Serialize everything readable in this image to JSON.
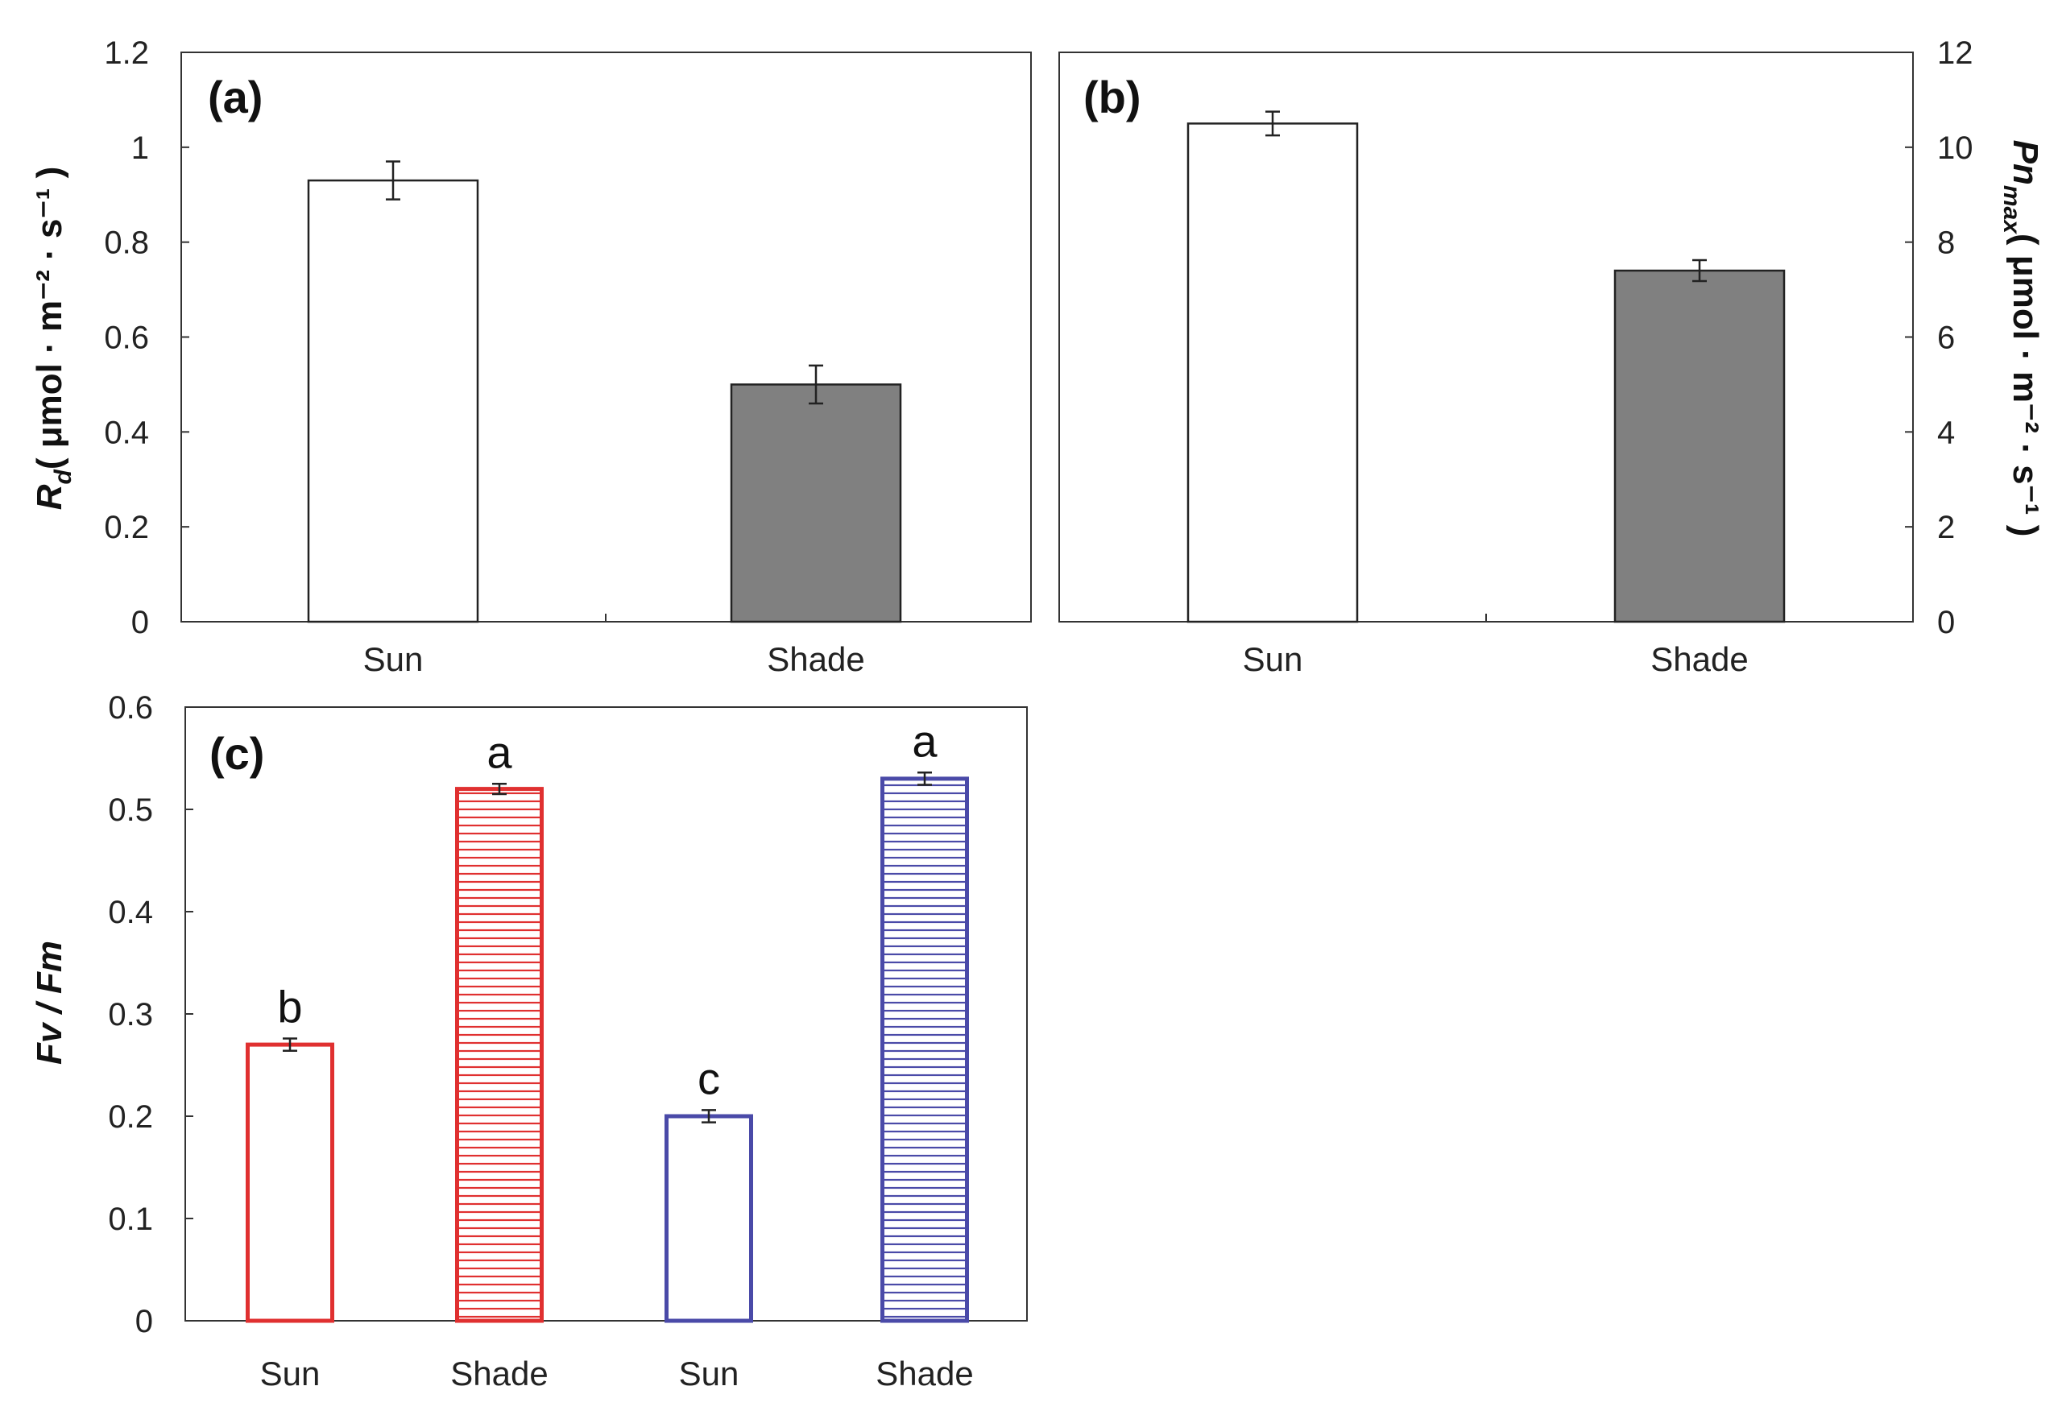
{
  "chart_data": [
    {
      "panel": "(a)",
      "type": "bar",
      "categories": [
        "Sun",
        "Shade"
      ],
      "values": [
        0.93,
        0.5
      ],
      "errors": [
        0.04,
        0.04
      ],
      "bar_fill": [
        "#ffffff",
        "#808080"
      ],
      "bar_stroke": [
        "#222222",
        "#222222"
      ],
      "ylim": [
        0,
        1.2
      ],
      "yticks": [
        "0",
        "0.2",
        "0.4",
        "0.6",
        "0.8",
        "1",
        "1.2"
      ],
      "ylabel_main": "R",
      "ylabel_sub": "d",
      "ylabel_units": "( μmol · m⁻² · s⁻¹ )"
    },
    {
      "panel": "(b)",
      "type": "bar",
      "categories": [
        "Sun",
        "Shade"
      ],
      "values": [
        10.5,
        7.4
      ],
      "errors": [
        0.25,
        0.22
      ],
      "bar_fill": [
        "#ffffff",
        "#808080"
      ],
      "bar_stroke": [
        "#222222",
        "#222222"
      ],
      "ylim": [
        0,
        12
      ],
      "yticks": [
        "0",
        "2",
        "4",
        "6",
        "8",
        "10",
        "12"
      ],
      "ylabel_main": "Pn",
      "ylabel_sub": "max",
      "ylabel_units": "( μmol · m⁻² · s⁻¹ )"
    },
    {
      "panel": "(c)",
      "type": "bar",
      "categories": [
        "Sun",
        "Shade",
        "Sun",
        "Shade"
      ],
      "values": [
        0.27,
        0.52,
        0.2,
        0.53
      ],
      "errors": [
        0.006,
        0.005,
        0.006,
        0.006
      ],
      "letters": [
        "b",
        "a",
        "c",
        "a"
      ],
      "bar_stroke": [
        "#e03030",
        "#e03030",
        "#4a4aa8",
        "#4a4aa8"
      ],
      "bar_pattern": [
        "none",
        "hatch",
        "none",
        "hatch"
      ],
      "ylim": [
        0,
        0.6
      ],
      "yticks": [
        "0",
        "0.1",
        "0.2",
        "0.3",
        "0.4",
        "0.5",
        "0.6"
      ],
      "ylabel": "Fv / Fm"
    }
  ]
}
